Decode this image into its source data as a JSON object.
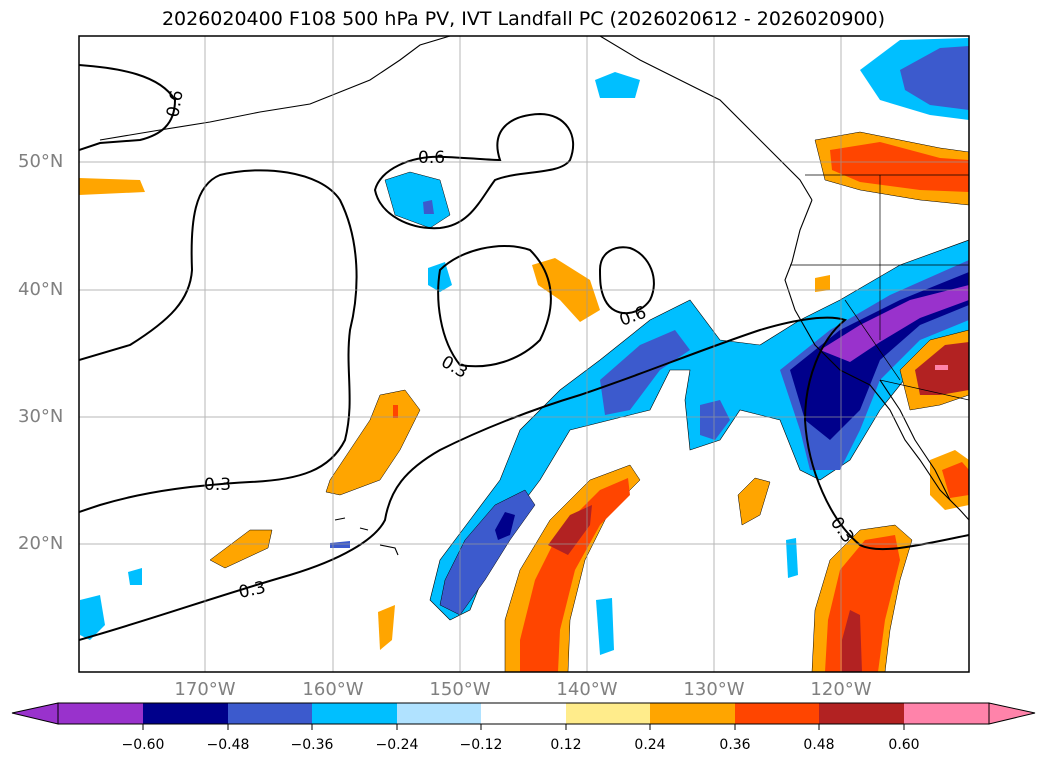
{
  "title": "2026020400 F108 500 hPa PV, IVT Landfall PC (2026020612 - 2026020900)",
  "map": {
    "lat_labels": [
      "50°N",
      "40°N",
      "30°N",
      "20°N"
    ],
    "lon_labels": [
      "170°W",
      "160°W",
      "150°W",
      "140°W",
      "130°W",
      "120°W"
    ],
    "contour_labels": [
      "0.6",
      "0.6",
      "0.6",
      "0.3",
      "0.3",
      "0.3",
      "0.3"
    ],
    "shading_variable": "IVT Landfall PC",
    "contour_variable": "500 hPa PV"
  },
  "colorbar": {
    "tick_labels": [
      "−0.60",
      "−0.48",
      "−0.36",
      "−0.24",
      "−0.12",
      "0.12",
      "0.24",
      "0.36",
      "0.48",
      "0.60"
    ],
    "bins": [
      {
        "color": "#9932cc"
      },
      {
        "color": "#00008b"
      },
      {
        "color": "#3c5acd"
      },
      {
        "color": "#00bfff"
      },
      {
        "color": "#b0e2ff"
      },
      {
        "color": "#ffffff"
      },
      {
        "color": "#ffec8b"
      },
      {
        "color": "#ffa500"
      },
      {
        "color": "#ff4500"
      },
      {
        "color": "#b22222"
      },
      {
        "color": "#ff83aa"
      }
    ]
  }
}
